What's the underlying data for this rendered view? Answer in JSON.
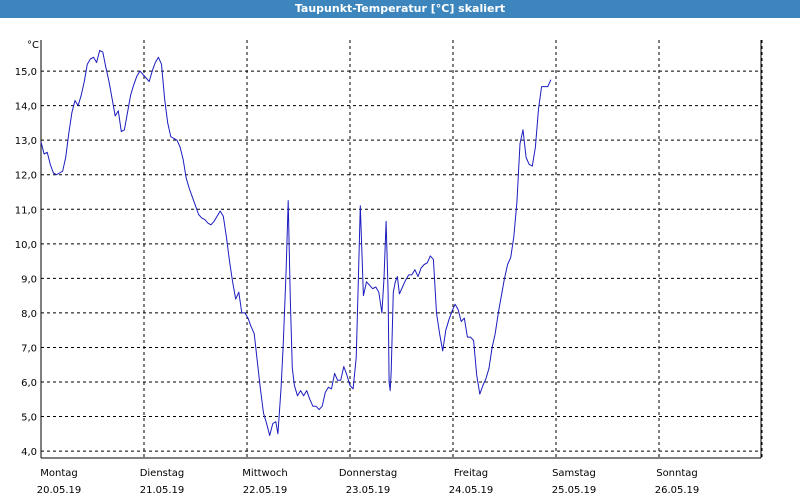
{
  "window": {
    "title": "Taupunkt-Temperatur [°C] skaliert"
  },
  "chart_data": {
    "type": "line",
    "title": "Taupunkt-Temperatur [°C] skaliert",
    "y_unit_label": "°C",
    "ylim": [
      3.8,
      15.9
    ],
    "y_ticks": [
      4.0,
      5.0,
      6.0,
      7.0,
      8.0,
      9.0,
      10.0,
      11.0,
      12.0,
      13.0,
      14.0,
      15.0
    ],
    "y_tick_labels": [
      "4,0",
      "5,0",
      "6,0",
      "7,0",
      "8,0",
      "9,0",
      "10,0",
      "11,0",
      "12,0",
      "13,0",
      "14,0",
      "15,0"
    ],
    "xlim": [
      0,
      7
    ],
    "days": [
      {
        "name": "Montag",
        "date": "20.05.19"
      },
      {
        "name": "Dienstag",
        "date": "21.05.19"
      },
      {
        "name": "Mittwoch",
        "date": "22.05.19"
      },
      {
        "name": "Donnerstag",
        "date": "23.05.19"
      },
      {
        "name": "Freitag",
        "date": "24.05.19"
      },
      {
        "name": "Samstag",
        "date": "25.05.19"
      },
      {
        "name": "Sonntag",
        "date": "26.05.19"
      }
    ],
    "grid": true,
    "line_color": "#1c1cbf",
    "series": [
      {
        "points": [
          [
            0.0,
            12.95
          ],
          [
            0.03,
            12.6
          ],
          [
            0.06,
            12.65
          ],
          [
            0.09,
            12.3
          ],
          [
            0.12,
            12.05
          ],
          [
            0.15,
            12.0
          ],
          [
            0.18,
            12.05
          ],
          [
            0.21,
            12.1
          ],
          [
            0.24,
            12.5
          ],
          [
            0.27,
            13.2
          ],
          [
            0.3,
            13.8
          ],
          [
            0.33,
            14.15
          ],
          [
            0.36,
            14.0
          ],
          [
            0.39,
            14.3
          ],
          [
            0.42,
            14.7
          ],
          [
            0.45,
            15.2
          ],
          [
            0.48,
            15.35
          ],
          [
            0.51,
            15.4
          ],
          [
            0.54,
            15.25
          ],
          [
            0.57,
            15.6
          ],
          [
            0.6,
            15.55
          ],
          [
            0.63,
            15.1
          ],
          [
            0.66,
            14.7
          ],
          [
            0.69,
            14.2
          ],
          [
            0.72,
            13.7
          ],
          [
            0.75,
            13.85
          ],
          [
            0.78,
            13.25
          ],
          [
            0.81,
            13.3
          ],
          [
            0.84,
            13.8
          ],
          [
            0.87,
            14.3
          ],
          [
            0.9,
            14.6
          ],
          [
            0.93,
            14.85
          ],
          [
            0.96,
            15.0
          ],
          [
            0.99,
            14.9
          ],
          [
            1.02,
            14.8
          ],
          [
            1.05,
            14.7
          ],
          [
            1.08,
            15.0
          ],
          [
            1.11,
            15.25
          ],
          [
            1.14,
            15.4
          ],
          [
            1.17,
            15.2
          ],
          [
            1.2,
            14.2
          ],
          [
            1.23,
            13.5
          ],
          [
            1.26,
            13.1
          ],
          [
            1.29,
            13.05
          ],
          [
            1.32,
            13.0
          ],
          [
            1.35,
            12.8
          ],
          [
            1.38,
            12.45
          ],
          [
            1.41,
            11.9
          ],
          [
            1.44,
            11.6
          ],
          [
            1.47,
            11.35
          ],
          [
            1.5,
            11.1
          ],
          [
            1.53,
            10.85
          ],
          [
            1.56,
            10.75
          ],
          [
            1.59,
            10.7
          ],
          [
            1.62,
            10.6
          ],
          [
            1.65,
            10.55
          ],
          [
            1.68,
            10.65
          ],
          [
            1.71,
            10.8
          ],
          [
            1.74,
            10.95
          ],
          [
            1.77,
            10.8
          ],
          [
            1.8,
            10.2
          ],
          [
            1.83,
            9.5
          ],
          [
            1.86,
            8.9
          ],
          [
            1.89,
            8.4
          ],
          [
            1.92,
            8.6
          ],
          [
            1.95,
            8.0
          ],
          [
            1.98,
            8.0
          ],
          [
            2.01,
            7.85
          ],
          [
            2.04,
            7.6
          ],
          [
            2.07,
            7.4
          ],
          [
            2.1,
            6.6
          ],
          [
            2.13,
            5.8
          ],
          [
            2.16,
            5.1
          ],
          [
            2.19,
            4.8
          ],
          [
            2.22,
            4.45
          ],
          [
            2.25,
            4.8
          ],
          [
            2.28,
            4.85
          ],
          [
            2.3,
            4.5
          ],
          [
            2.33,
            5.8
          ],
          [
            2.35,
            7.0
          ],
          [
            2.38,
            9.2
          ],
          [
            2.4,
            11.25
          ],
          [
            2.42,
            8.4
          ],
          [
            2.44,
            6.4
          ],
          [
            2.46,
            5.9
          ],
          [
            2.49,
            5.6
          ],
          [
            2.52,
            5.75
          ],
          [
            2.55,
            5.6
          ],
          [
            2.58,
            5.75
          ],
          [
            2.61,
            5.5
          ],
          [
            2.64,
            5.3
          ],
          [
            2.67,
            5.3
          ],
          [
            2.7,
            5.2
          ],
          [
            2.73,
            5.3
          ],
          [
            2.76,
            5.7
          ],
          [
            2.79,
            5.85
          ],
          [
            2.82,
            5.8
          ],
          [
            2.85,
            6.25
          ],
          [
            2.88,
            6.05
          ],
          [
            2.91,
            6.05
          ],
          [
            2.94,
            6.45
          ],
          [
            2.97,
            6.2
          ],
          [
            3.0,
            5.9
          ],
          [
            3.03,
            5.8
          ],
          [
            3.06,
            6.7
          ],
          [
            3.08,
            8.8
          ],
          [
            3.1,
            11.1
          ],
          [
            3.13,
            8.5
          ],
          [
            3.16,
            8.9
          ],
          [
            3.19,
            8.8
          ],
          [
            3.22,
            8.7
          ],
          [
            3.25,
            8.75
          ],
          [
            3.28,
            8.6
          ],
          [
            3.31,
            8.0
          ],
          [
            3.33,
            9.0
          ],
          [
            3.35,
            10.65
          ],
          [
            3.37,
            8.6
          ],
          [
            3.38,
            6.0
          ],
          [
            3.39,
            5.75
          ],
          [
            3.4,
            6.3
          ],
          [
            3.42,
            8.6
          ],
          [
            3.44,
            8.9
          ],
          [
            3.46,
            9.05
          ],
          [
            3.48,
            8.55
          ],
          [
            3.51,
            8.75
          ],
          [
            3.54,
            8.95
          ],
          [
            3.57,
            9.1
          ],
          [
            3.6,
            9.1
          ],
          [
            3.63,
            9.25
          ],
          [
            3.66,
            9.05
          ],
          [
            3.69,
            9.3
          ],
          [
            3.72,
            9.4
          ],
          [
            3.75,
            9.45
          ],
          [
            3.78,
            9.65
          ],
          [
            3.81,
            9.55
          ],
          [
            3.84,
            8.0
          ],
          [
            3.87,
            7.4
          ],
          [
            3.9,
            6.9
          ],
          [
            3.93,
            7.5
          ],
          [
            3.96,
            7.8
          ],
          [
            3.99,
            8.05
          ],
          [
            4.02,
            8.25
          ],
          [
            4.05,
            8.1
          ],
          [
            4.08,
            7.75
          ],
          [
            4.11,
            7.85
          ],
          [
            4.14,
            7.3
          ],
          [
            4.17,
            7.3
          ],
          [
            4.2,
            7.2
          ],
          [
            4.23,
            6.2
          ],
          [
            4.26,
            5.65
          ],
          [
            4.29,
            5.9
          ],
          [
            4.32,
            6.1
          ],
          [
            4.35,
            6.4
          ],
          [
            4.38,
            7.0
          ],
          [
            4.41,
            7.4
          ],
          [
            4.44,
            8.0
          ],
          [
            4.47,
            8.5
          ],
          [
            4.5,
            9.0
          ],
          [
            4.53,
            9.4
          ],
          [
            4.56,
            9.6
          ],
          [
            4.59,
            10.2
          ],
          [
            4.62,
            11.2
          ],
          [
            4.65,
            12.9
          ],
          [
            4.68,
            13.3
          ],
          [
            4.71,
            12.5
          ],
          [
            4.74,
            12.3
          ],
          [
            4.77,
            12.25
          ],
          [
            4.8,
            12.8
          ],
          [
            4.83,
            13.9
          ],
          [
            4.86,
            14.55
          ],
          [
            4.89,
            14.55
          ],
          [
            4.92,
            14.55
          ],
          [
            4.95,
            14.75
          ]
        ]
      }
    ]
  }
}
